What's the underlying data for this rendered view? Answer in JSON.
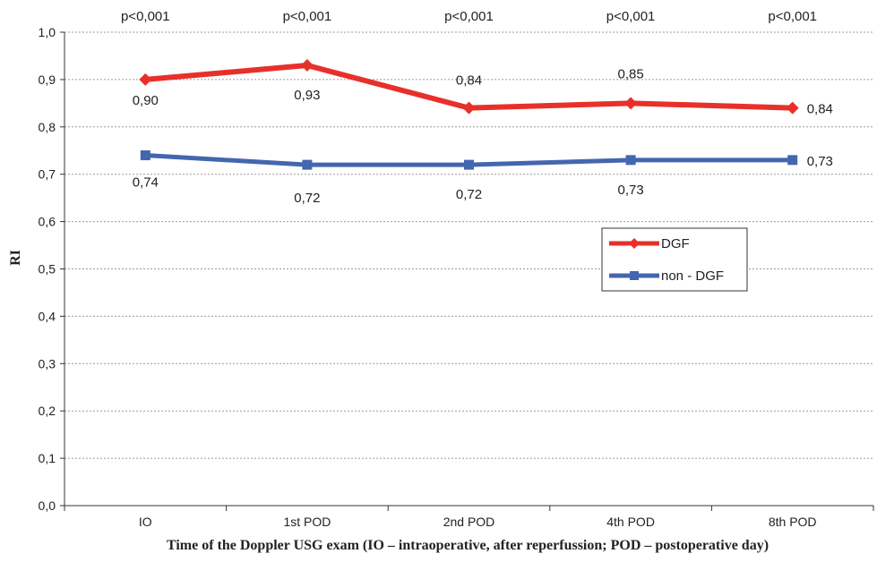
{
  "chart_data": {
    "type": "line",
    "categories": [
      "IO",
      "1st POD",
      "2nd POD",
      "4th POD",
      "8th POD"
    ],
    "series": [
      {
        "name": "DGF",
        "values": [
          0.9,
          0.93,
          0.84,
          0.85,
          0.84
        ],
        "labels": [
          "0,90",
          "0,93",
          "0,84",
          "0,85",
          "0,84"
        ],
        "color": "#e8302a",
        "marker": "diamond"
      },
      {
        "name": "non - DGF",
        "values": [
          0.74,
          0.72,
          0.72,
          0.73,
          0.73
        ],
        "labels": [
          "0,74",
          "0,72",
          "0,72",
          "0,73",
          "0,73"
        ],
        "color": "#4466b0",
        "marker": "square"
      }
    ],
    "p_values": [
      "p<0,001",
      "p<0,001",
      "p<0,001",
      "p<0,001",
      "p<0,001"
    ],
    "ylabel": "RI",
    "xlabel": "Time of the Doppler USG exam (IO – intraoperative, after reperfussion; POD – postoperative day)",
    "ylim": [
      0,
      1
    ],
    "yticks": [
      "0,0",
      "0,1",
      "0,2",
      "0,3",
      "0,4",
      "0,5",
      "0,6",
      "0,7",
      "0,8",
      "0,9",
      "1,0"
    ],
    "grid": true,
    "legend_position": "middle-right"
  }
}
